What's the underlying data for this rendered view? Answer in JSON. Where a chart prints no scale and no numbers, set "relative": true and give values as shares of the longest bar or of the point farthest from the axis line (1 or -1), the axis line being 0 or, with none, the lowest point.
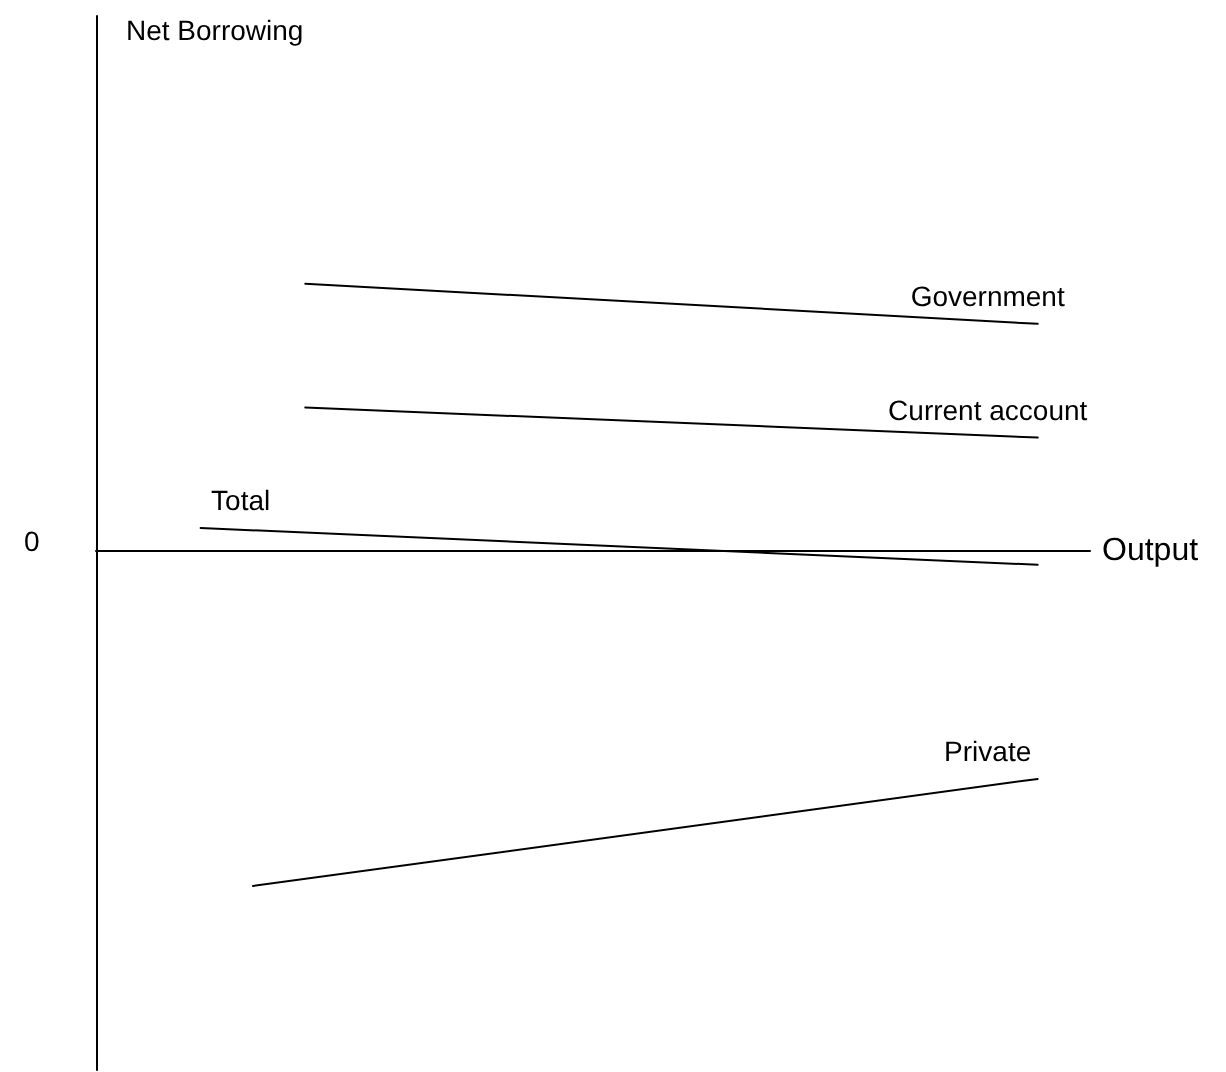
{
  "chart_data": {
    "type": "line",
    "relative": true,
    "xlabel": "Output",
    "annotations": [
      "Net Borrowing",
      "0"
    ],
    "categories": [
      null,
      null,
      null,
      null,
      null,
      null,
      null,
      null,
      null,
      null,
      null,
      null,
      null,
      null,
      null,
      null,
      null,
      null,
      null,
      null
    ],
    "series": [
      {
        "name": "Government",
        "color": "#000000",
        "values": [
          null,
          null,
          null,
          null,
          0.8,
          null,
          null,
          null,
          null,
          null,
          null,
          null,
          null,
          null,
          null,
          null,
          null,
          null,
          0.68,
          null
        ]
      },
      {
        "name": "Current account",
        "color": "#000000",
        "values": [
          null,
          null,
          null,
          null,
          0.43,
          null,
          null,
          null,
          null,
          null,
          null,
          null,
          null,
          null,
          null,
          null,
          null,
          null,
          0.34,
          null
        ]
      },
      {
        "name": "Total",
        "color": "#000000",
        "values": [
          null,
          null,
          0.07,
          null,
          null,
          null,
          null,
          null,
          null,
          null,
          null,
          null,
          null,
          null,
          null,
          null,
          null,
          null,
          -0.04,
          null
        ]
      },
      {
        "name": "Private",
        "color": "#000000",
        "values": [
          null,
          null,
          null,
          -1,
          null,
          null,
          null,
          null,
          null,
          null,
          null,
          null,
          null,
          null,
          null,
          null,
          null,
          null,
          -0.68,
          null
        ]
      }
    ],
    "legend": false,
    "grid": false,
    "marker": "none",
    "line_style": "solid"
  }
}
